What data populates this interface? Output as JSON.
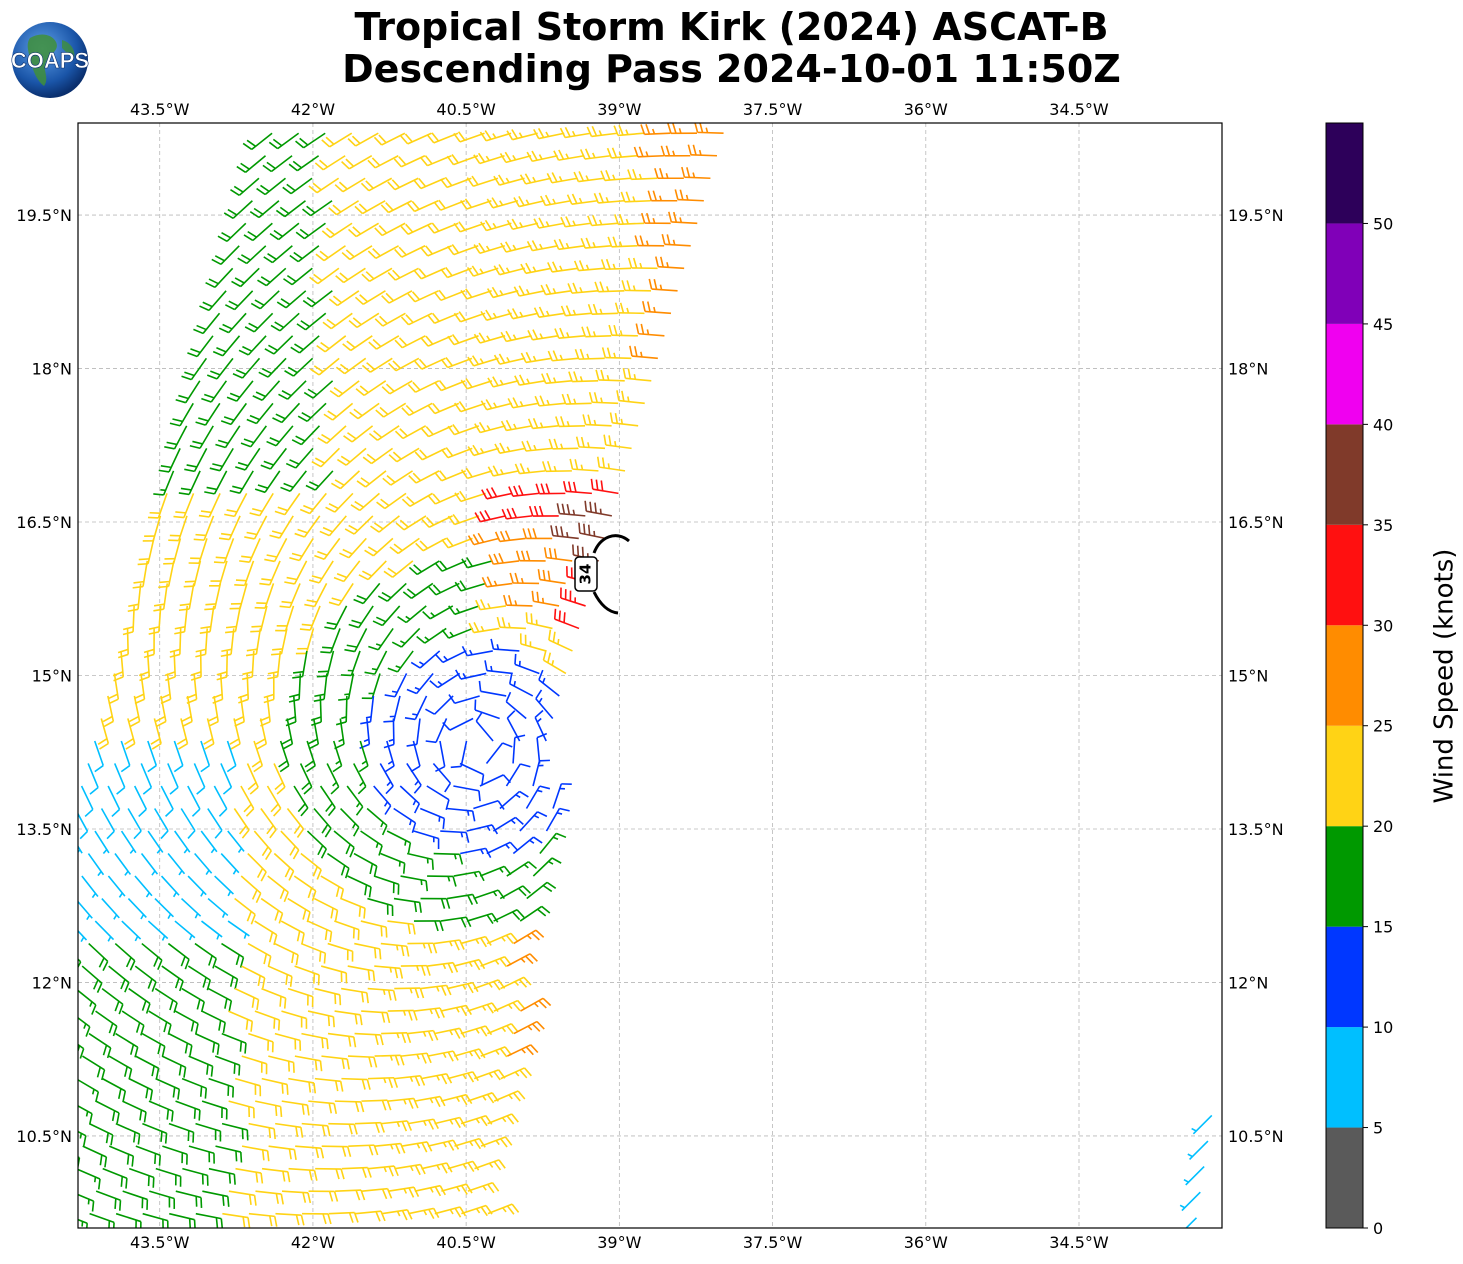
{
  "title": {
    "line1": "Tropical Storm Kirk (2024) ASCAT-B",
    "line2": "Descending Pass 2024-10-01 11:50Z"
  },
  "logo": {
    "text": "COAPS",
    "icon": "globe-icon"
  },
  "map": {
    "lon_ticks": [
      "43.5°W",
      "42°W",
      "40.5°W",
      "39°W",
      "37.5°W",
      "36°W",
      "34.5°W"
    ],
    "lon_values": [
      -43.5,
      -42,
      -40.5,
      -39,
      -37.5,
      -36,
      -34.5
    ],
    "lat_ticks": [
      "19.5°N",
      "18°N",
      "16.5°N",
      "15°N",
      "13.5°N",
      "12°N",
      "10.5°N"
    ],
    "lat_values": [
      19.5,
      18,
      16.5,
      15,
      13.5,
      12,
      10.5
    ],
    "lon_range": [
      -44.3,
      -33.1
    ],
    "lat_range": [
      9.6,
      20.4
    ],
    "grid": true,
    "contour_label": "34"
  },
  "colorbar": {
    "label": "Wind Speed (knots)",
    "ticks": [
      "0",
      "5",
      "10",
      "15",
      "20",
      "25",
      "30",
      "35",
      "40",
      "45",
      "50"
    ],
    "bins": [
      0,
      5,
      10,
      15,
      20,
      25,
      30,
      35,
      40,
      45,
      50,
      55
    ],
    "colors": [
      "#5a5a5a",
      "#00bfff",
      "#0037ff",
      "#009900",
      "#ffd315",
      "#ff8c00",
      "#ff1010",
      "#803a2a",
      "#f000f0",
      "#8000b8",
      "#2d005a"
    ]
  },
  "chart_data": {
    "type": "wind-barb-map",
    "center": {
      "lon": -40.4,
      "lat": 14.3
    },
    "swath_left_edge": [
      [
        -42.4,
        20.3
      ],
      [
        -44.3,
        13.8
      ]
    ],
    "swath_right_edge": [
      [
        -37.9,
        20.3
      ],
      [
        -39.5,
        14.6
      ],
      [
        -40.3,
        9.6
      ]
    ],
    "zones": [
      {
        "speed_kt": 18,
        "color": "#009900",
        "note": "west side north"
      },
      {
        "speed_kt": 23,
        "color": "#ffd315",
        "note": "north east and south"
      },
      {
        "speed_kt": 27,
        "color": "#ff8c00",
        "note": "east side"
      },
      {
        "speed_kt": 32,
        "color": "#ff1010",
        "note": "core max"
      },
      {
        "speed_kt": 37,
        "color": "#803a2a",
        "note": "near 34 kt contour"
      },
      {
        "speed_kt": 12,
        "color": "#0037ff",
        "note": "inner circulation"
      },
      {
        "speed_kt": 7,
        "color": "#00bfff",
        "note": "light winds west"
      }
    ]
  }
}
